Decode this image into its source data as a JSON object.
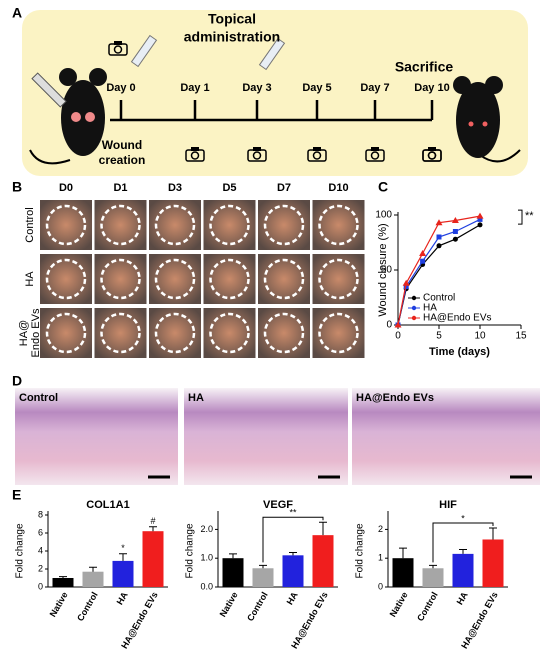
{
  "panel_labels": [
    "A",
    "B",
    "C",
    "D",
    "E"
  ],
  "timeline": {
    "days": [
      "Day 0",
      "Day 1",
      "Day 3",
      "Day 5",
      "Day 7",
      "Day 10"
    ],
    "topical": [
      "Topical",
      "administration"
    ],
    "wound": [
      "Wound",
      "creation"
    ],
    "sacrifice": "Sacrifice"
  },
  "photo_grid": {
    "columns": [
      "D0",
      "D1",
      "D3",
      "D5",
      "D7",
      "D10"
    ],
    "rows": [
      [
        "Control"
      ],
      [
        "HA"
      ],
      [
        "HA@",
        "Endo EVs"
      ]
    ]
  },
  "histology": {
    "labels": [
      "Control",
      "HA",
      "HA@Endo EVs"
    ]
  },
  "chart_data": [
    {
      "type": "line",
      "x_label": "Time (days)",
      "y_label": "Wound closure (%)",
      "x": [
        0,
        1,
        3,
        5,
        7,
        10
      ],
      "series": [
        {
          "name": "Control",
          "color": "#000000",
          "marker": "circle",
          "values": [
            0,
            33,
            55,
            72,
            78,
            91
          ]
        },
        {
          "name": "HA",
          "color": "#1f3fe0",
          "marker": "square",
          "values": [
            0,
            35,
            58,
            80,
            85,
            96
          ]
        },
        {
          "name": "HA@Endo EVs",
          "color": "#e8241c",
          "marker": "triangle",
          "values": [
            0,
            38,
            65,
            93,
            95,
            99
          ]
        }
      ],
      "xlim": [
        0,
        15
      ],
      "xticks": [
        0,
        5,
        10,
        15
      ],
      "ylim": [
        0,
        100
      ],
      "yticks": [
        0,
        50,
        100
      ],
      "annotation": "**"
    },
    {
      "type": "bar",
      "title": "COL1A1",
      "y_label": "Fold change",
      "categories": [
        "Native",
        "Control",
        "HA",
        "HA@Endo EVs"
      ],
      "colors": [
        "#000000",
        "#a6a6a6",
        "#2222dd",
        "#f01e1e"
      ],
      "values": [
        1.0,
        1.7,
        2.9,
        6.2
      ],
      "errors": [
        0.15,
        0.5,
        0.8,
        0.5
      ],
      "ylim": [
        0,
        8
      ],
      "yticks": [
        0,
        2,
        4,
        6,
        8
      ],
      "annotations": [
        {
          "text": "*",
          "category": "HA"
        },
        {
          "text": "#",
          "category": "HA@Endo EVs"
        }
      ]
    },
    {
      "type": "bar",
      "title": "VEGF",
      "y_label": "Fold change",
      "categories": [
        "Native",
        "Control",
        "HA",
        "HA@Endo EVs"
      ],
      "colors": [
        "#000000",
        "#a6a6a6",
        "#2222dd",
        "#f01e1e"
      ],
      "values": [
        1.0,
        0.65,
        1.1,
        1.8
      ],
      "errors": [
        0.15,
        0.1,
        0.1,
        0.45
      ],
      "ylim": [
        0,
        2.5
      ],
      "yticks": [
        {
          "value": 0,
          "label": "0.0"
        },
        {
          "value": 1,
          "label": "1.0"
        },
        {
          "value": 2,
          "label": "2.0"
        }
      ],
      "brackets": [
        {
          "text": "**",
          "from": "Control",
          "to": "HA@Endo EVs"
        }
      ]
    },
    {
      "type": "bar",
      "title": "HIF",
      "y_label": "Fold change",
      "categories": [
        "Native",
        "Control",
        "HA",
        "HA@Endo EVs"
      ],
      "colors": [
        "#000000",
        "#a6a6a6",
        "#2222dd",
        "#f01e1e"
      ],
      "values": [
        1.0,
        0.65,
        1.15,
        1.65
      ],
      "errors": [
        0.35,
        0.1,
        0.15,
        0.4
      ],
      "ylim": [
        0,
        2.5
      ],
      "yticks": [
        0,
        1,
        2
      ],
      "brackets": [
        {
          "text": "*",
          "from": "Control",
          "to": "HA@Endo EVs"
        }
      ]
    }
  ]
}
